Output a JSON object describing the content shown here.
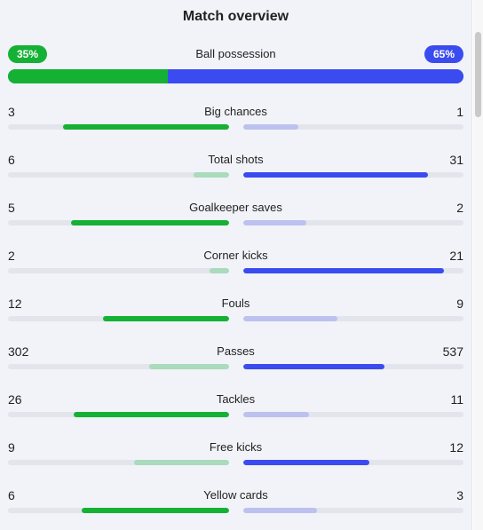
{
  "title": "Match overview",
  "possession": {
    "label": "Ball possession",
    "home_label": "35%",
    "away_label": "65%",
    "home": 35,
    "away": 65
  },
  "stats": [
    {
      "label": "Big chances",
      "home": "3",
      "away": "1"
    },
    {
      "label": "Total shots",
      "home": "6",
      "away": "31"
    },
    {
      "label": "Goalkeeper saves",
      "home": "5",
      "away": "2"
    },
    {
      "label": "Corner kicks",
      "home": "2",
      "away": "21"
    },
    {
      "label": "Fouls",
      "home": "12",
      "away": "9"
    },
    {
      "label": "Passes",
      "home": "302",
      "away": "537"
    },
    {
      "label": "Tackles",
      "home": "26",
      "away": "11"
    },
    {
      "label": "Free kicks",
      "home": "9",
      "away": "12"
    },
    {
      "label": "Yellow cards",
      "home": "6",
      "away": "3"
    }
  ],
  "colors": {
    "home": "#15b135",
    "home_light": "#a9dbbc",
    "away": "#3a4cf0",
    "away_light": "#bcc1ef"
  }
}
